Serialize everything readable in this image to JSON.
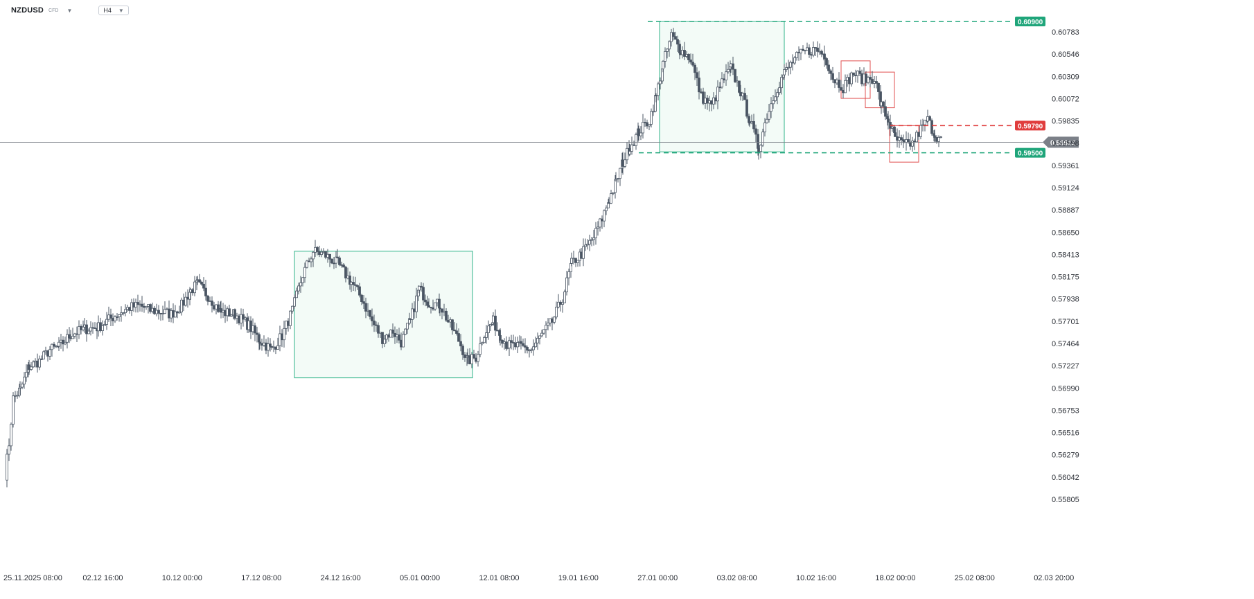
{
  "toolbar": {
    "symbol": "NZDUSD",
    "instrument_type": "CFD",
    "timeframe": "H4"
  },
  "colors": {
    "candle": "#4a5563",
    "green_line": "#1fa57a",
    "red_line": "#e03d3d",
    "box_fill": "#f3fbf7",
    "box_stroke": "#2fb389",
    "red_box": "#e05050",
    "price_tag": "#7b8088"
  },
  "chart_data": {
    "type": "candlestick",
    "symbol": "NZDUSD",
    "timeframe": "H4",
    "ylim": [
      0.55805,
      0.609
    ],
    "y_ticks": [
      "0.60783",
      "0.60546",
      "0.60309",
      "0.60072",
      "0.59835",
      "0.59598",
      "0.59361",
      "0.59124",
      "0.58887",
      "0.58650",
      "0.58413",
      "0.58175",
      "0.57938",
      "0.57701",
      "0.57464",
      "0.57227",
      "0.56990",
      "0.56753",
      "0.56516",
      "0.56279",
      "0.56042",
      "0.55805"
    ],
    "x_ticks": [
      "25.11.2025  08:00",
      "02.12  16:00",
      "10.12  00:00",
      "17.12  08:00",
      "24.12  16:00",
      "05.01  00:00",
      "12.01  08:00",
      "19.01  16:00",
      "27.01  00:00",
      "03.02  08:00",
      "10.02  16:00",
      "18.02  00:00",
      "25.02  08:00",
      "02.03  20:00"
    ],
    "current_price": "0.59612",
    "levels": [
      {
        "value": "0.60900",
        "color": "green",
        "style": "dashed"
      },
      {
        "value": "0.59790",
        "color": "red",
        "style": "dashed"
      },
      {
        "value": "0.59500",
        "color": "green",
        "style": "dashed"
      }
    ],
    "anchors": [
      [
        0,
        0.5607
      ],
      [
        6,
        0.564
      ],
      [
        12,
        0.5688
      ],
      [
        22,
        0.5697
      ],
      [
        35,
        0.5722
      ],
      [
        50,
        0.5728
      ],
      [
        65,
        0.574
      ],
      [
        78,
        0.5743
      ],
      [
        95,
        0.5756
      ],
      [
        115,
        0.5762
      ],
      [
        135,
        0.5764
      ],
      [
        150,
        0.5772
      ],
      [
        165,
        0.5779
      ],
      [
        180,
        0.5785
      ],
      [
        195,
        0.5787
      ],
      [
        210,
        0.5782
      ],
      [
        228,
        0.578
      ],
      [
        240,
        0.5778
      ],
      [
        255,
        0.5787
      ],
      [
        268,
        0.5803
      ],
      [
        278,
        0.581
      ],
      [
        296,
        0.5795
      ],
      [
        312,
        0.578
      ],
      [
        332,
        0.5778
      ],
      [
        352,
        0.5766
      ],
      [
        368,
        0.575
      ],
      [
        385,
        0.574
      ],
      [
        400,
        0.5755
      ],
      [
        415,
        0.5782
      ],
      [
        430,
        0.582
      ],
      [
        445,
        0.5845
      ],
      [
        460,
        0.5842
      ],
      [
        480,
        0.5832
      ],
      [
        500,
        0.5812
      ],
      [
        515,
        0.5795
      ],
      [
        530,
        0.577
      ],
      [
        545,
        0.5752
      ],
      [
        560,
        0.576
      ],
      [
        572,
        0.5748
      ],
      [
        585,
        0.577
      ],
      [
        598,
        0.5805
      ],
      [
        612,
        0.579
      ],
      [
        628,
        0.5788
      ],
      [
        640,
        0.577
      ],
      [
        655,
        0.575
      ],
      [
        668,
        0.5728
      ],
      [
        680,
        0.5732
      ],
      [
        692,
        0.5758
      ],
      [
        705,
        0.577
      ],
      [
        715,
        0.5756
      ],
      [
        725,
        0.5745
      ],
      [
        745,
        0.5743
      ],
      [
        760,
        0.574
      ],
      [
        775,
        0.5756
      ],
      [
        790,
        0.577
      ],
      [
        805,
        0.5795
      ],
      [
        818,
        0.5832
      ],
      [
        832,
        0.5842
      ],
      [
        850,
        0.586
      ],
      [
        862,
        0.588
      ],
      [
        872,
        0.59
      ],
      [
        882,
        0.5918
      ],
      [
        892,
        0.594
      ],
      [
        902,
        0.5956
      ],
      [
        915,
        0.5972
      ],
      [
        930,
        0.5985
      ],
      [
        940,
        0.601
      ],
      [
        950,
        0.6045
      ],
      [
        962,
        0.6075
      ],
      [
        975,
        0.606
      ],
      [
        990,
        0.605
      ],
      [
        1005,
        0.601
      ],
      [
        1020,
        0.6
      ],
      [
        1035,
        0.6025
      ],
      [
        1048,
        0.604
      ],
      [
        1062,
        0.6015
      ],
      [
        1075,
        0.5985
      ],
      [
        1088,
        0.5955
      ],
      [
        1100,
        0.599
      ],
      [
        1112,
        0.6015
      ],
      [
        1125,
        0.6035
      ],
      [
        1140,
        0.605
      ],
      [
        1155,
        0.6058
      ],
      [
        1170,
        0.606
      ],
      [
        1183,
        0.6055
      ],
      [
        1195,
        0.603
      ],
      [
        1210,
        0.602
      ],
      [
        1225,
        0.6035
      ],
      [
        1240,
        0.6028
      ],
      [
        1255,
        0.603
      ],
      [
        1265,
        0.6
      ],
      [
        1275,
        0.5985
      ],
      [
        1285,
        0.5965
      ],
      [
        1298,
        0.5958
      ],
      [
        1310,
        0.596
      ],
      [
        1322,
        0.5975
      ],
      [
        1332,
        0.5985
      ],
      [
        1342,
        0.597
      ],
      [
        1354,
        0.5961
      ]
    ],
    "annotations": [
      {
        "type": "box",
        "from": [
          419,
          0.5845
        ],
        "to": [
          676,
          0.571
        ]
      },
      {
        "type": "box",
        "from": [
          946,
          0.609
        ],
        "to": [
          1126,
          0.5951
        ]
      },
      {
        "type": "box",
        "from": [
          1208,
          0.6048
        ],
        "to": [
          1250,
          0.6008
        ]
      },
      {
        "type": "box",
        "from": [
          1243,
          0.6036
        ],
        "to": [
          1285,
          0.5998
        ]
      },
      {
        "type": "box",
        "from": [
          1278,
          0.5979
        ],
        "to": [
          1320,
          0.594
        ]
      }
    ]
  }
}
